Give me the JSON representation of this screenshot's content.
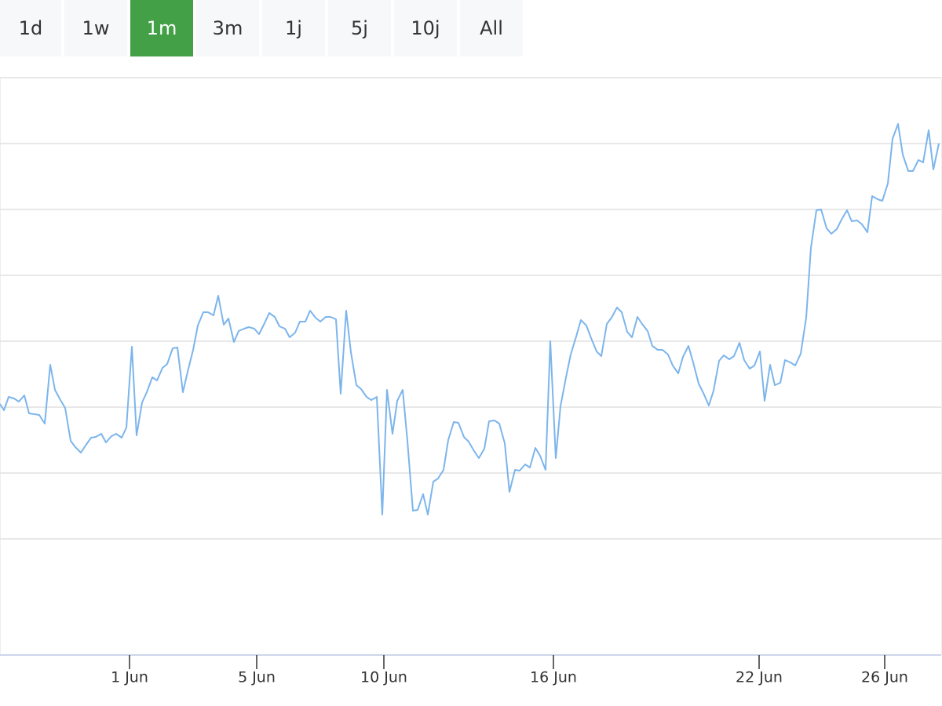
{
  "range_buttons": {
    "labels": [
      "1d",
      "1w",
      "1m",
      "3m",
      "1j",
      "5j",
      "10j",
      "All"
    ],
    "selected": 2,
    "color": "#f7f8fa",
    "selected_color": "#43a047"
  },
  "chart_data": {
    "type": "line",
    "series": [
      {
        "color": "#7cb5ec",
        "x": [
          0,
          0.5,
          1.1,
          1.8,
          2.4,
          3.1,
          3.7,
          4.4,
          5.0,
          5.7,
          6.4,
          7.0,
          7.7,
          8.3,
          9.0,
          9.6,
          10.3,
          10.9,
          11.6,
          12.2,
          12.9,
          13.5,
          14.2,
          14.8,
          15.5,
          16.1,
          16.8,
          17.4,
          18.1,
          18.7,
          19.4,
          20.0,
          20.7,
          21.3,
          22.0,
          22.6,
          23.3,
          23.9,
          24.6,
          25.2,
          25.9,
          26.5,
          27.2,
          27.8,
          28.5,
          29.1,
          29.8,
          30.4,
          31.1,
          31.7,
          32.4,
          33.0,
          33.7,
          34.3,
          35.0,
          35.6,
          36.3,
          36.9,
          37.6,
          38.2,
          38.9,
          39.5,
          40.2,
          40.8,
          41.5,
          42.1,
          42.8,
          43.4,
          44.1,
          44.7,
          45.4,
          46.0,
          46.7,
          47.3,
          48.0,
          48.7,
          49.3,
          50.0,
          50.6,
          51.3,
          51.9,
          52.6,
          53.2,
          53.9,
          54.5,
          55.2,
          55.8,
          56.5,
          57.1,
          57.8,
          58.4,
          59.1,
          59.7,
          60.4,
          61.0,
          61.7,
          62.3,
          63.0,
          63.6,
          64.3,
          64.9,
          65.6,
          66.2,
          66.9,
          67.5,
          68.2,
          68.8,
          69.5,
          70.1,
          70.8,
          71.4,
          72.1,
          72.7,
          73.4,
          74.0,
          74.7,
          75.3,
          76.0,
          76.6,
          77.3,
          77.9,
          78.6,
          79.2,
          79.9,
          80.5,
          81.2,
          81.8,
          82.5,
          83.1,
          83.8,
          84.4,
          85.1,
          85.7,
          86.4,
          87.0,
          87.7,
          88.3,
          89.0,
          89.6,
          90.3,
          90.9,
          91.6,
          92.2,
          92.9,
          93.5,
          94.2,
          94.8,
          95.5,
          96.1,
          96.8,
          97.4,
          98.1,
          98.7,
          99.4,
          100.0,
          100.7,
          101.3,
          102.0,
          102.7,
          103.3,
          104.0,
          104.6,
          105.3,
          105.9,
          106.6,
          107.2,
          107.9,
          108.5,
          109.2,
          109.8,
          110.5,
          111.1,
          111.8,
          112.4,
          113.1,
          113.7,
          114.4,
          115.0,
          115.7,
          116.3,
          117.0,
          117.6,
          118.3,
          118.9,
          119.6
        ],
        "values": [
          32.0,
          31.2,
          32.9,
          32.7,
          32.3,
          33.1,
          30.8,
          30.7,
          30.6,
          29.5,
          37.0,
          33.8,
          32.5,
          31.5,
          27.3,
          26.5,
          25.8,
          26.7,
          27.7,
          27.8,
          28.2,
          27.1,
          27.9,
          28.2,
          27.7,
          29.0,
          39.3,
          28.0,
          32.2,
          33.5,
          35.4,
          35.0,
          36.6,
          37.1,
          39.1,
          39.2,
          33.5,
          36.1,
          38.9,
          42.0,
          43.7,
          43.7,
          43.3,
          45.8,
          42.1,
          42.9,
          39.9,
          41.3,
          41.6,
          41.8,
          41.6,
          40.9,
          42.3,
          43.6,
          43.1,
          41.9,
          41.6,
          40.5,
          41.1,
          42.5,
          42.5,
          43.9,
          43.0,
          42.5,
          43.1,
          43.1,
          42.8,
          33.3,
          43.9,
          38.6,
          34.4,
          33.9,
          32.9,
          32.5,
          32.9,
          17.9,
          33.8,
          28.2,
          32.4,
          33.8,
          27.3,
          18.4,
          18.5,
          20.5,
          17.9,
          22.1,
          22.5,
          23.6,
          27.4,
          29.7,
          29.6,
          27.8,
          27.2,
          26.0,
          25.1,
          26.3,
          29.8,
          29.9,
          29.5,
          27.0,
          20.8,
          23.6,
          23.5,
          24.3,
          23.9,
          26.4,
          25.4,
          23.6,
          40.0,
          25.1,
          31.7,
          35.4,
          38.3,
          40.6,
          42.7,
          42.0,
          40.4,
          38.7,
          38.1,
          42.2,
          43.0,
          44.3,
          43.7,
          41.2,
          40.5,
          43.1,
          42.2,
          41.3,
          39.4,
          38.9,
          38.9,
          38.3,
          36.9,
          35.9,
          38.0,
          39.4,
          37.3,
          34.6,
          33.4,
          31.8,
          33.7,
          37.5,
          38.2,
          37.7,
          38.1,
          39.8,
          37.6,
          36.5,
          36.9,
          38.7,
          32.4,
          37.0,
          34.4,
          34.7,
          37.6,
          37.3,
          36.9,
          38.4,
          43.0,
          51.9,
          56.7,
          56.8,
          54.4,
          53.7,
          54.3,
          55.5,
          56.7,
          55.3,
          55.4,
          54.9,
          53.9,
          58.5,
          58.1,
          57.9,
          60.1,
          65.8,
          67.7,
          63.8,
          61.7,
          61.7,
          63.1,
          62.8,
          66.9,
          61.9,
          65.2
        ]
      }
    ],
    "xlim": [
      0,
      119.9
    ],
    "xticks": [
      {
        "value": 16.5,
        "label": "1 Jun"
      },
      {
        "value": 32.7,
        "label": "5 Jun"
      },
      {
        "value": 48.9,
        "label": "10 Jun"
      },
      {
        "value": 70.5,
        "label": "16 Jun"
      },
      {
        "value": 96.7,
        "label": "22 Jun"
      },
      {
        "value": 112.7,
        "label": "26 Jun"
      }
    ],
    "ylim": [
      0,
      73.6
    ],
    "yticks": [
      14.8,
      23.2,
      31.6,
      40,
      48.4,
      56.8,
      65.2,
      73.6
    ],
    "grid": true
  }
}
